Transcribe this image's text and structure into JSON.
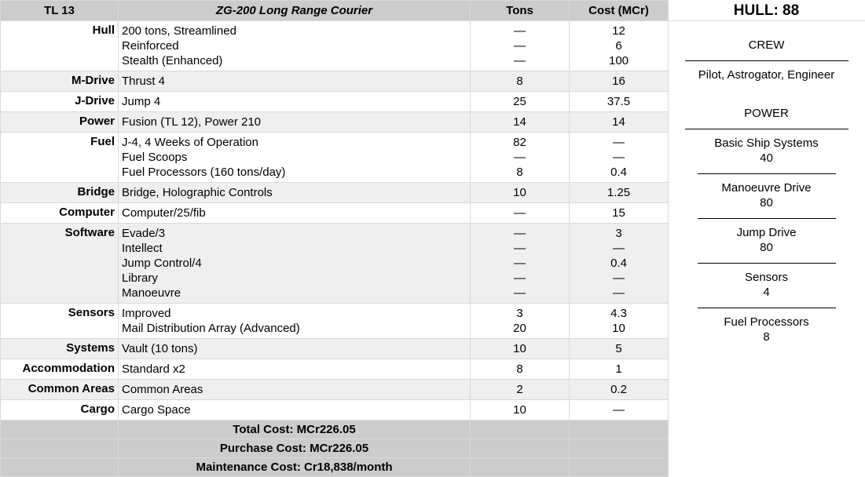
{
  "header": {
    "tl": "TL 13",
    "name": "ZG-200 Long Range Courier",
    "tons": "Tons",
    "cost": "Cost (MCr)"
  },
  "rows": [
    {
      "label": "Hull",
      "items": [
        "200 tons, Streamlined",
        "Reinforced",
        "Stealth (Enhanced)"
      ],
      "tons": [
        "—",
        "—",
        "—"
      ],
      "cost": [
        "12",
        "6",
        "100"
      ]
    },
    {
      "label": "M-Drive",
      "items": [
        "Thrust 4"
      ],
      "tons": [
        "8"
      ],
      "cost": [
        "16"
      ]
    },
    {
      "label": "J-Drive",
      "items": [
        "Jump 4"
      ],
      "tons": [
        "25"
      ],
      "cost": [
        "37.5"
      ]
    },
    {
      "label": "Power",
      "items": [
        "Fusion (TL 12), Power 210"
      ],
      "tons": [
        "14"
      ],
      "cost": [
        "14"
      ]
    },
    {
      "label": "Fuel",
      "items": [
        "J-4, 4 Weeks of Operation",
        "Fuel Scoops",
        "Fuel Processors (160 tons/day)"
      ],
      "tons": [
        "82",
        "—",
        "8"
      ],
      "cost": [
        "—",
        "—",
        "0.4"
      ]
    },
    {
      "label": "Bridge",
      "items": [
        "Bridge, Holographic Controls"
      ],
      "tons": [
        "10"
      ],
      "cost": [
        "1.25"
      ]
    },
    {
      "label": "Computer",
      "items": [
        "Computer/25/fib"
      ],
      "tons": [
        "—"
      ],
      "cost": [
        "15"
      ]
    },
    {
      "label": "Software",
      "items": [
        "Evade/3",
        "Intellect",
        "Jump Control/4",
        "Library",
        "Manoeuvre"
      ],
      "tons": [
        "—",
        "—",
        "—",
        "—",
        "—"
      ],
      "cost": [
        "3",
        "—",
        "0.4",
        "—",
        "—"
      ]
    },
    {
      "label": "Sensors",
      "items": [
        "Improved",
        "Mail Distribution Array (Advanced)"
      ],
      "tons": [
        "3",
        "20"
      ],
      "cost": [
        "4.3",
        "10"
      ]
    },
    {
      "label": "Systems",
      "items": [
        "Vault (10 tons)"
      ],
      "tons": [
        "10"
      ],
      "cost": [
        "5"
      ]
    },
    {
      "label": "Accommodation",
      "items": [
        "Standard x2"
      ],
      "tons": [
        "8"
      ],
      "cost": [
        "1"
      ]
    },
    {
      "label": "Common Areas",
      "items": [
        "Common Areas"
      ],
      "tons": [
        "2"
      ],
      "cost": [
        "0.2"
      ]
    },
    {
      "label": "Cargo",
      "items": [
        "Cargo Space"
      ],
      "tons": [
        "10"
      ],
      "cost": [
        "—"
      ]
    }
  ],
  "totals": [
    "Total Cost: MCr226.05",
    "Purchase Cost: MCr226.05",
    "Maintenance Cost: Cr18,838/month"
  ],
  "side": {
    "hull": "HULL: 88",
    "crew_title": "CREW",
    "crew": "Pilot, Astrogator, Engineer",
    "power_title": "POWER",
    "power": [
      {
        "name": "Basic Ship Systems",
        "value": "40"
      },
      {
        "name": "Manoeuvre Drive",
        "value": "80"
      },
      {
        "name": "Jump Drive",
        "value": "80"
      },
      {
        "name": "Sensors",
        "value": "4"
      },
      {
        "name": "Fuel Processors",
        "value": "8"
      }
    ]
  }
}
